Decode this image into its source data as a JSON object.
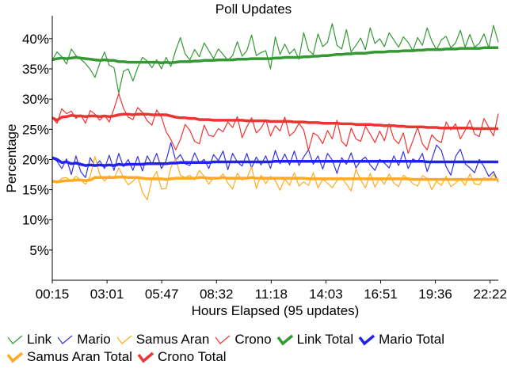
{
  "chart_data": {
    "type": "line",
    "title": "Poll Updates",
    "xlabel": "Hours Elapsed (95 updates)",
    "ylabel": "Percentage",
    "x_tick_labels": [
      "00:15",
      "03:01",
      "05:47",
      "08:32",
      "11:18",
      "14:03",
      "16:51",
      "19:36",
      "22:22"
    ],
    "y_tick_labels": [
      "5%",
      "10%",
      "15%",
      "20%",
      "25%",
      "30%",
      "35%",
      "40%"
    ],
    "y_ticks": [
      5,
      10,
      15,
      20,
      25,
      30,
      35,
      40
    ],
    "ylim": [
      0,
      43
    ],
    "n_updates": 95,
    "grid": false,
    "legend_position": "bottom",
    "series": [
      {
        "name": "Link",
        "color": "#339933",
        "style": "thin",
        "icon": "thin-check-icon",
        "values": [
          36.5,
          37.8,
          37.0,
          35.8,
          38.3,
          37.2,
          36.6,
          35.9,
          34.9,
          33.6,
          35.9,
          37.8,
          35.6,
          35.2,
          31.0,
          34.6,
          35.0,
          33.0,
          35.2,
          36.9,
          36.3,
          35.2,
          36.5,
          35.0,
          36.9,
          35.4,
          38.0,
          40.2,
          37.5,
          36.5,
          38.2,
          37.0,
          39.3,
          38.0,
          36.7,
          38.3,
          37.4,
          36.4,
          37.2,
          39.5,
          37.1,
          38.0,
          40.6,
          37.2,
          37.7,
          38.0,
          35.0,
          40.3,
          37.4,
          39.1,
          37.5,
          38.3,
          36.6,
          41.0,
          38.1,
          37.4,
          40.8,
          38.7,
          39.4,
          42.5,
          38.9,
          38.3,
          41.5,
          37.8,
          38.9,
          40.1,
          38.2,
          41.8,
          39.2,
          40.0,
          38.7,
          41.0,
          39.8,
          38.6,
          40.3,
          39.4,
          38.0,
          40.2,
          38.9,
          41.8,
          39.6,
          38.2,
          39.8,
          40.4,
          38.5,
          39.3,
          41.4,
          38.6,
          40.7,
          38.6,
          39.2,
          40.8,
          38.5,
          42.2,
          39.4
        ]
      },
      {
        "name": "Mario",
        "color": "#3333dd",
        "style": "thin",
        "icon": "thin-check-icon",
        "values": [
          20.3,
          19.7,
          18.5,
          20.1,
          17.5,
          20.6,
          18.0,
          17.0,
          20.3,
          18.9,
          19.8,
          18.5,
          20.7,
          18.2,
          21.0,
          18.8,
          20.0,
          18.2,
          20.5,
          18.1,
          20.6,
          19.2,
          21.0,
          18.5,
          19.8,
          22.8,
          19.9,
          20.8,
          19.3,
          19.0,
          21.1,
          19.4,
          20.0,
          18.5,
          20.8,
          19.8,
          21.4,
          18.3,
          21.0,
          19.6,
          18.9,
          21.0,
          18.6,
          20.4,
          19.1,
          20.6,
          18.5,
          21.5,
          19.3,
          20.9,
          19.1,
          21.4,
          19.0,
          20.4,
          21.6,
          19.2,
          20.6,
          18.4,
          21.0,
          19.9,
          17.7,
          20.3,
          19.2,
          21.1,
          18.6,
          19.8,
          20.4,
          19.1,
          18.2,
          20.0,
          19.4,
          18.6,
          20.6,
          19.0,
          21.3,
          18.5,
          20.1,
          19.6,
          21.0,
          18.0,
          20.0,
          22.4,
          21.5,
          18.8,
          17.4,
          20.5,
          21.7,
          19.3,
          18.6,
          17.8,
          20.0,
          18.8,
          17.2,
          18.0,
          16.3
        ]
      },
      {
        "name": "Samus Aran",
        "color": "#ffaa22",
        "style": "thin",
        "icon": "thin-check-icon",
        "values": [
          16.4,
          16.1,
          16.9,
          17.0,
          16.4,
          17.2,
          16.6,
          15.9,
          17.2,
          20.5,
          17.5,
          16.4,
          17.3,
          16.9,
          18.6,
          17.1,
          15.8,
          16.4,
          17.2,
          14.6,
          13.3,
          16.7,
          18.0,
          15.1,
          15.2,
          18.7,
          20.1,
          17.4,
          17.0,
          17.4,
          16.6,
          18.2,
          17.2,
          15.9,
          17.0,
          16.8,
          17.6,
          16.1,
          15.1,
          17.7,
          16.6,
          16.9,
          18.8,
          15.2,
          17.4,
          16.0,
          17.2,
          16.5,
          14.9,
          16.8,
          15.7,
          17.8,
          15.6,
          16.3,
          15.7,
          17.8,
          15.3,
          16.7,
          16.1,
          15.3,
          16.5,
          17.0,
          15.9,
          14.8,
          18.4,
          16.6,
          15.3,
          17.7,
          15.4,
          16.9,
          15.9,
          17.6,
          16.1,
          15.5,
          17.4,
          16.8,
          16.0,
          15.6,
          17.3,
          16.9,
          15.0,
          16.4,
          15.7,
          17.2,
          15.5,
          16.1,
          16.8,
          15.7,
          17.6,
          16.0,
          15.8,
          17.0,
          16.5,
          17.5,
          16.2
        ]
      },
      {
        "name": "Crono",
        "color": "#ee3333",
        "style": "thin",
        "icon": "thin-check-icon",
        "values": [
          26.9,
          26.0,
          28.4,
          27.6,
          28.0,
          26.8,
          27.4,
          26.0,
          28.1,
          27.5,
          26.5,
          27.3,
          26.2,
          28.4,
          30.9,
          28.5,
          27.0,
          26.6,
          28.6,
          27.8,
          26.4,
          25.7,
          28.2,
          27.0,
          24.6,
          23.3,
          21.6,
          23.3,
          25.8,
          24.8,
          23.0,
          22.6,
          25.7,
          24.0,
          23.8,
          25.1,
          24.6,
          26.2,
          25.3,
          27.1,
          23.6,
          25.4,
          26.9,
          24.4,
          25.2,
          26.6,
          23.9,
          25.6,
          24.7,
          27.0,
          23.9,
          24.6,
          26.0,
          24.9,
          21.5,
          24.4,
          23.9,
          22.6,
          24.8,
          23.4,
          26.5,
          23.0,
          22.2,
          25.2,
          23.4,
          23.0,
          25.5,
          24.2,
          22.8,
          24.7,
          23.1,
          25.9,
          23.4,
          22.6,
          24.4,
          21.0,
          23.1,
          25.3,
          22.6,
          21.6,
          24.1,
          23.2,
          22.8,
          26.2,
          24.9,
          25.9,
          23.4,
          24.8,
          26.5,
          24.2,
          23.8,
          26.8,
          25.3,
          23.9,
          27.6
        ]
      },
      {
        "name": "Link Total",
        "color": "#339933",
        "style": "thick",
        "icon": "thick-check-icon",
        "values": [
          36.5,
          36.7,
          36.8,
          36.7,
          36.8,
          36.9,
          36.8,
          36.7,
          36.6,
          36.5,
          36.4,
          36.5,
          36.4,
          36.4,
          36.2,
          36.2,
          36.1,
          36.1,
          36.1,
          36.1,
          36.1,
          36.1,
          36.1,
          36.0,
          36.1,
          36.0,
          36.1,
          36.2,
          36.2,
          36.2,
          36.3,
          36.3,
          36.4,
          36.4,
          36.4,
          36.5,
          36.5,
          36.5,
          36.5,
          36.6,
          36.6,
          36.6,
          36.7,
          36.7,
          36.7,
          36.7,
          36.7,
          36.8,
          36.8,
          36.9,
          36.9,
          36.9,
          36.9,
          37.0,
          37.0,
          37.1,
          37.1,
          37.2,
          37.2,
          37.3,
          37.4,
          37.4,
          37.5,
          37.5,
          37.6,
          37.6,
          37.6,
          37.7,
          37.8,
          37.8,
          37.8,
          37.9,
          37.9,
          37.9,
          38.0,
          38.0,
          38.0,
          38.1,
          38.1,
          38.2,
          38.2,
          38.2,
          38.2,
          38.3,
          38.3,
          38.3,
          38.4,
          38.4,
          38.4,
          38.4,
          38.4,
          38.5,
          38.5,
          38.5,
          38.5
        ]
      },
      {
        "name": "Mario Total",
        "color": "#2222ee",
        "style": "thick",
        "icon": "thick-check-icon",
        "values": [
          20.3,
          20.0,
          19.5,
          19.6,
          19.3,
          19.4,
          19.2,
          19.0,
          19.1,
          19.0,
          19.1,
          19.0,
          19.1,
          19.0,
          19.2,
          19.1,
          19.2,
          19.2,
          19.2,
          19.2,
          19.3,
          19.3,
          19.3,
          19.3,
          19.3,
          19.4,
          19.4,
          19.5,
          19.5,
          19.5,
          19.5,
          19.5,
          19.5,
          19.5,
          19.6,
          19.6,
          19.6,
          19.6,
          19.6,
          19.6,
          19.6,
          19.6,
          19.6,
          19.6,
          19.6,
          19.6,
          19.6,
          19.7,
          19.7,
          19.7,
          19.7,
          19.7,
          19.7,
          19.7,
          19.7,
          19.7,
          19.7,
          19.7,
          19.7,
          19.7,
          19.7,
          19.7,
          19.7,
          19.7,
          19.7,
          19.7,
          19.7,
          19.7,
          19.7,
          19.7,
          19.7,
          19.7,
          19.7,
          19.7,
          19.7,
          19.7,
          19.7,
          19.7,
          19.7,
          19.6,
          19.6,
          19.6,
          19.6,
          19.6,
          19.6,
          19.6,
          19.6,
          19.6,
          19.6,
          19.6,
          19.6,
          19.6,
          19.6,
          19.6,
          19.6
        ]
      },
      {
        "name": "Samus Aran Total",
        "color": "#ffaa22",
        "style": "thick",
        "icon": "thick-check-icon",
        "values": [
          16.4,
          16.3,
          16.4,
          16.5,
          16.5,
          16.6,
          16.6,
          16.5,
          16.6,
          17.0,
          17.0,
          17.0,
          17.0,
          17.0,
          17.1,
          17.1,
          17.0,
          17.0,
          17.0,
          16.9,
          16.8,
          16.8,
          16.8,
          16.8,
          16.7,
          16.8,
          16.9,
          16.9,
          16.9,
          16.9,
          16.9,
          17.0,
          17.0,
          16.9,
          16.9,
          16.9,
          17.0,
          16.9,
          16.9,
          16.9,
          16.9,
          16.9,
          17.0,
          16.9,
          16.9,
          16.9,
          16.9,
          16.9,
          16.9,
          16.9,
          16.9,
          16.9,
          16.9,
          16.9,
          16.8,
          16.8,
          16.8,
          16.8,
          16.8,
          16.8,
          16.8,
          16.8,
          16.8,
          16.8,
          16.8,
          16.8,
          16.8,
          16.8,
          16.8,
          16.8,
          16.8,
          16.8,
          16.8,
          16.8,
          16.8,
          16.8,
          16.7,
          16.7,
          16.7,
          16.7,
          16.7,
          16.7,
          16.7,
          16.7,
          16.7,
          16.7,
          16.7,
          16.7,
          16.7,
          16.7,
          16.7,
          16.7,
          16.7,
          16.7,
          16.7
        ]
      },
      {
        "name": "Crono Total",
        "color": "#ee3333",
        "style": "thick",
        "icon": "thick-check-icon",
        "values": [
          26.9,
          26.5,
          27.0,
          27.1,
          27.3,
          27.2,
          27.2,
          27.1,
          27.2,
          27.2,
          27.1,
          27.2,
          27.1,
          27.2,
          27.4,
          27.5,
          27.5,
          27.4,
          27.5,
          27.5,
          27.5,
          27.4,
          27.4,
          27.4,
          27.4,
          27.2,
          27.0,
          26.9,
          26.9,
          26.8,
          26.8,
          26.6,
          26.6,
          26.6,
          26.5,
          26.5,
          26.5,
          26.5,
          26.5,
          26.5,
          26.5,
          26.4,
          26.4,
          26.4,
          26.4,
          26.4,
          26.3,
          26.3,
          26.3,
          26.3,
          26.3,
          26.2,
          26.2,
          26.2,
          26.1,
          26.1,
          26.1,
          26.0,
          26.0,
          26.0,
          26.0,
          25.9,
          25.9,
          25.9,
          25.8,
          25.8,
          25.8,
          25.8,
          25.7,
          25.7,
          25.6,
          25.6,
          25.6,
          25.5,
          25.5,
          25.4,
          25.4,
          25.4,
          25.4,
          25.3,
          25.3,
          25.3,
          25.2,
          25.2,
          25.2,
          25.2,
          25.2,
          25.2,
          25.2,
          25.1,
          25.1,
          25.1,
          25.1,
          25.1,
          25.1
        ]
      }
    ]
  }
}
